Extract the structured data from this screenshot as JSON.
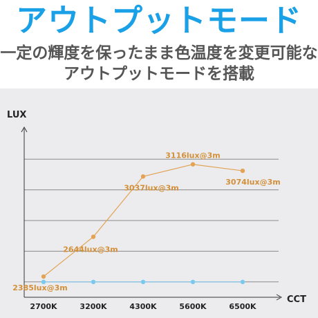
{
  "header": {
    "title": "アウトプットモード",
    "subtitle_line1": "一定の輝度を保ったまま色温度を変更可能な",
    "subtitle_line2": "アウトプットモードを搭載"
  },
  "colors": {
    "title": "#1aa0e6",
    "subtitle": "#555555",
    "panel_bg": "#ececee",
    "grid": "#8a8a8a",
    "series_orange": "#e2a356",
    "series_blue": "#7cc9ee",
    "label_orange": "#d2903a"
  },
  "chart_data": {
    "type": "line",
    "xlabel": "CCT",
    "ylabel": "LUX",
    "categories": [
      "2700K",
      "3200K",
      "4300K",
      "5600K",
      "6500K"
    ],
    "ylim": [
      2250,
      3250
    ],
    "grid": "horizontal",
    "series": [
      {
        "values": [
          2385,
          2644,
          3037,
          3116,
          3074
        ],
        "labels": [
          "2385lux@3m",
          "2644lux@3m",
          "3037lux@3m",
          "3116lux@3m",
          "3074lux@3m"
        ],
        "color": "#e2a356"
      },
      {
        "values": [
          2350,
          2350,
          2350,
          2350,
          2350
        ],
        "color": "#7cc9ee"
      }
    ]
  }
}
